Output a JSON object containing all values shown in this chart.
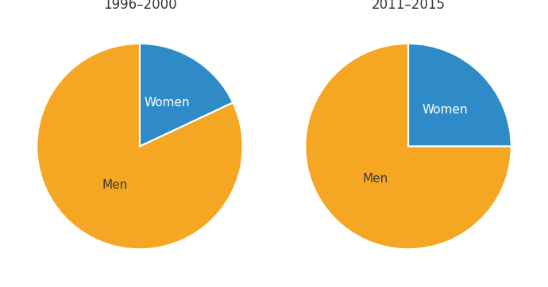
{
  "charts": [
    {
      "title": "1996–2000",
      "women_pct": 18,
      "men_pct": 82
    },
    {
      "title": "2011–2015",
      "women_pct": 25,
      "men_pct": 75
    }
  ],
  "colors": {
    "women": "#2E8BC7",
    "men": "#F5A623"
  },
  "label_men": "Men",
  "label_women": "Women",
  "bg_color": "#ffffff",
  "title_fontsize": 12,
  "label_fontsize": 11,
  "startangle": 90,
  "wedge_linewidth": 1.5,
  "wedge_edgecolor": "#ffffff"
}
